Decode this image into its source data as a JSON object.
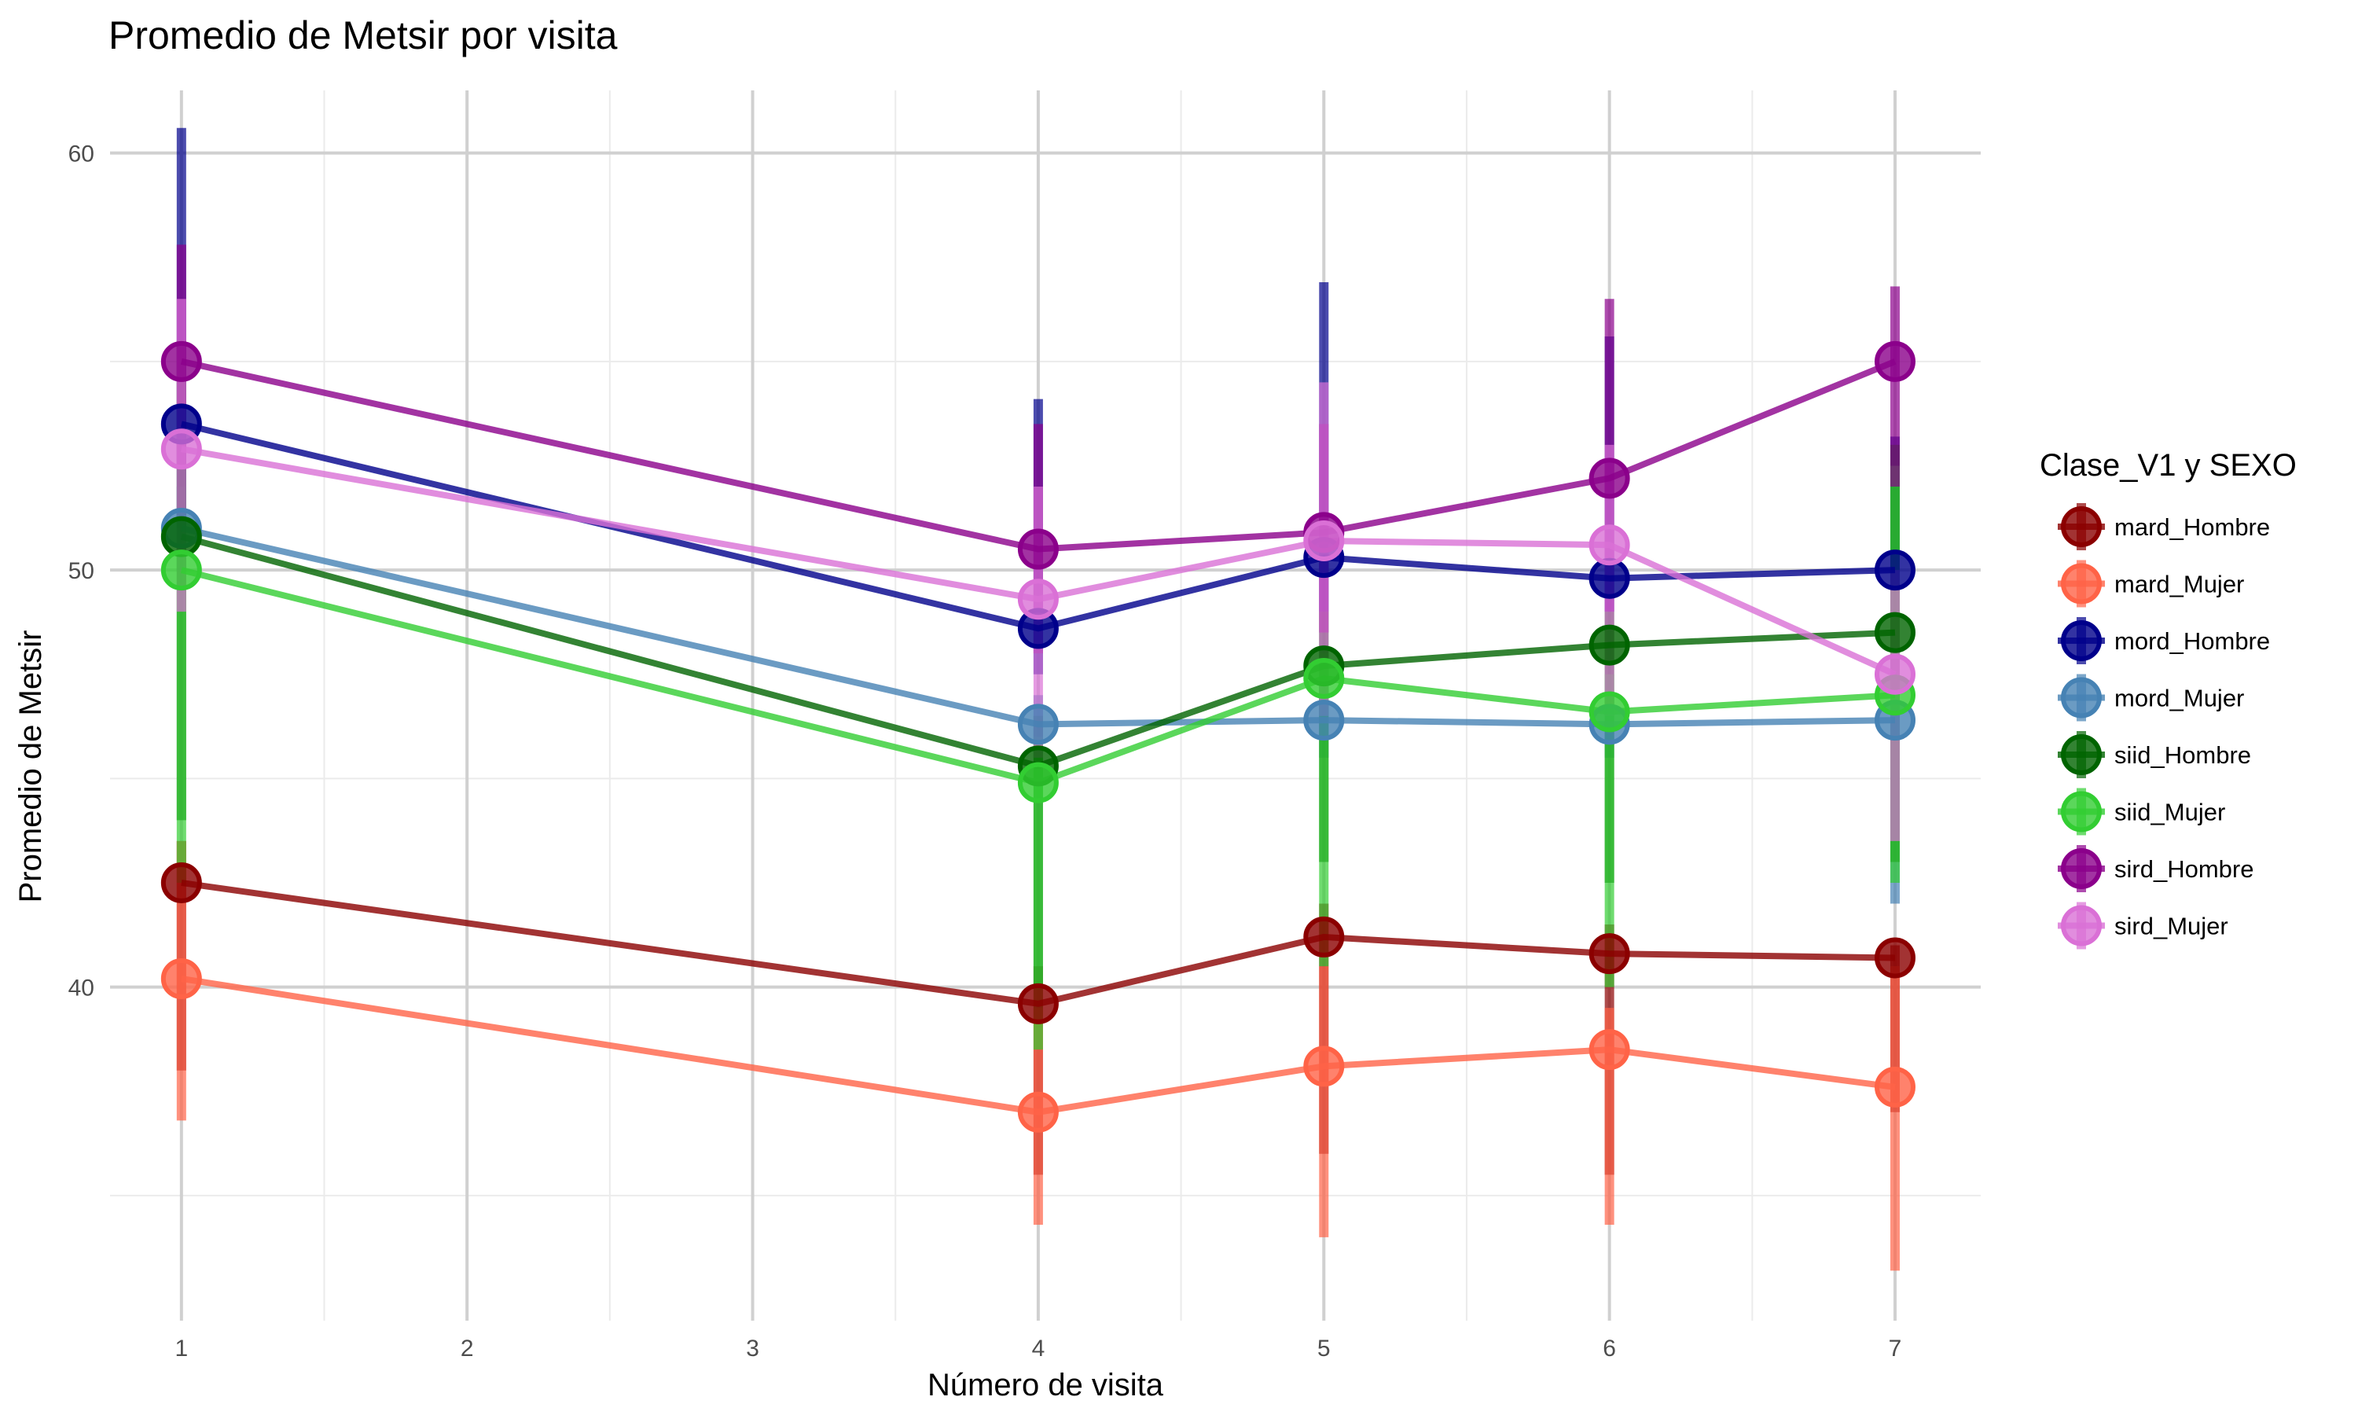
{
  "chart_data": {
    "type": "line",
    "title": "Promedio de Metsir por visita",
    "xlabel": "Número de visita",
    "ylabel": "Promedio de Metsir",
    "x_ticks": [
      1,
      2,
      3,
      4,
      5,
      6,
      7
    ],
    "y_ticks": [
      40,
      50,
      60
    ],
    "xlim": [
      0.75,
      7.3
    ],
    "ylim": [
      32,
      61.5
    ],
    "grid": true,
    "legend": {
      "title": "Clase_V1 y SEXO",
      "position": "right"
    },
    "series": [
      {
        "name": "mard_Hombre",
        "color": "#8B0000",
        "x": [
          1,
          4,
          5,
          6,
          7
        ],
        "y": [
          42.5,
          39.6,
          41.2,
          40.8,
          40.7
        ],
        "err_low": [
          38.0,
          35.5,
          36.0,
          35.5,
          37.0
        ],
        "err_high": [
          43.5,
          40.5,
          42.0,
          41.5,
          41.0
        ]
      },
      {
        "name": "mard_Mujer",
        "color": "#FF6347",
        "x": [
          1,
          4,
          5,
          6,
          7
        ],
        "y": [
          40.2,
          37.0,
          38.1,
          38.5,
          37.6
        ],
        "err_low": [
          36.8,
          34.3,
          34.0,
          34.3,
          33.2
        ],
        "err_high": [
          43.5,
          39.5,
          40.5,
          39.5,
          40.5
        ]
      },
      {
        "name": "mord_Hombre",
        "color": "#00008B",
        "x": [
          1,
          4,
          5,
          6,
          7
        ],
        "y": [
          53.5,
          48.6,
          50.3,
          49.8,
          50.0
        ],
        "err_low": [
          51.0,
          47.5,
          49.0,
          49.0,
          49.5
        ],
        "err_high": [
          60.6,
          54.1,
          56.9,
          55.6,
          53.2
        ]
      },
      {
        "name": "mord_Mujer",
        "color": "#4682B4",
        "x": [
          1,
          4,
          5,
          6,
          7
        ],
        "y": [
          51.0,
          46.3,
          46.4,
          46.3,
          46.4
        ],
        "err_low": [
          50.0,
          45.5,
          45.5,
          45.5,
          42.0
        ],
        "err_high": [
          52.0,
          47.0,
          47.5,
          47.0,
          47.0
        ]
      },
      {
        "name": "siid_Hombre",
        "color": "#006400",
        "x": [
          1,
          4,
          5,
          6,
          7
        ],
        "y": [
          50.8,
          45.3,
          47.7,
          48.2,
          48.5
        ],
        "err_low": [
          44.0,
          40.0,
          43.0,
          42.5,
          43.0
        ],
        "err_high": [
          55.5,
          46.5,
          49.0,
          49.0,
          53.0
        ]
      },
      {
        "name": "siid_Mujer",
        "color": "#32CD32",
        "x": [
          1,
          4,
          5,
          6,
          7
        ],
        "y": [
          50.0,
          44.9,
          47.4,
          46.6,
          47.0
        ],
        "err_low": [
          42.5,
          38.5,
          40.5,
          40.0,
          42.5
        ],
        "err_high": [
          49.5,
          46.0,
          48.0,
          47.5,
          52.5
        ]
      },
      {
        "name": "sird_Hombre",
        "color": "#8B008B",
        "x": [
          1,
          4,
          5,
          6,
          7
        ],
        "y": [
          55.0,
          50.5,
          50.9,
          52.2,
          55.0
        ],
        "err_low": [
          52.5,
          48.0,
          48.5,
          49.0,
          52.0
        ],
        "err_high": [
          57.8,
          53.5,
          53.5,
          56.5,
          56.8
        ]
      },
      {
        "name": "sird_Mujer",
        "color": "#DA70D6",
        "x": [
          1,
          4,
          5,
          6,
          7
        ],
        "y": [
          52.9,
          49.3,
          50.7,
          50.6,
          47.5
        ],
        "err_low": [
          49.0,
          45.5,
          46.5,
          46.5,
          43.5
        ],
        "err_high": [
          56.5,
          52.0,
          54.5,
          53.0,
          50.0
        ]
      }
    ]
  }
}
